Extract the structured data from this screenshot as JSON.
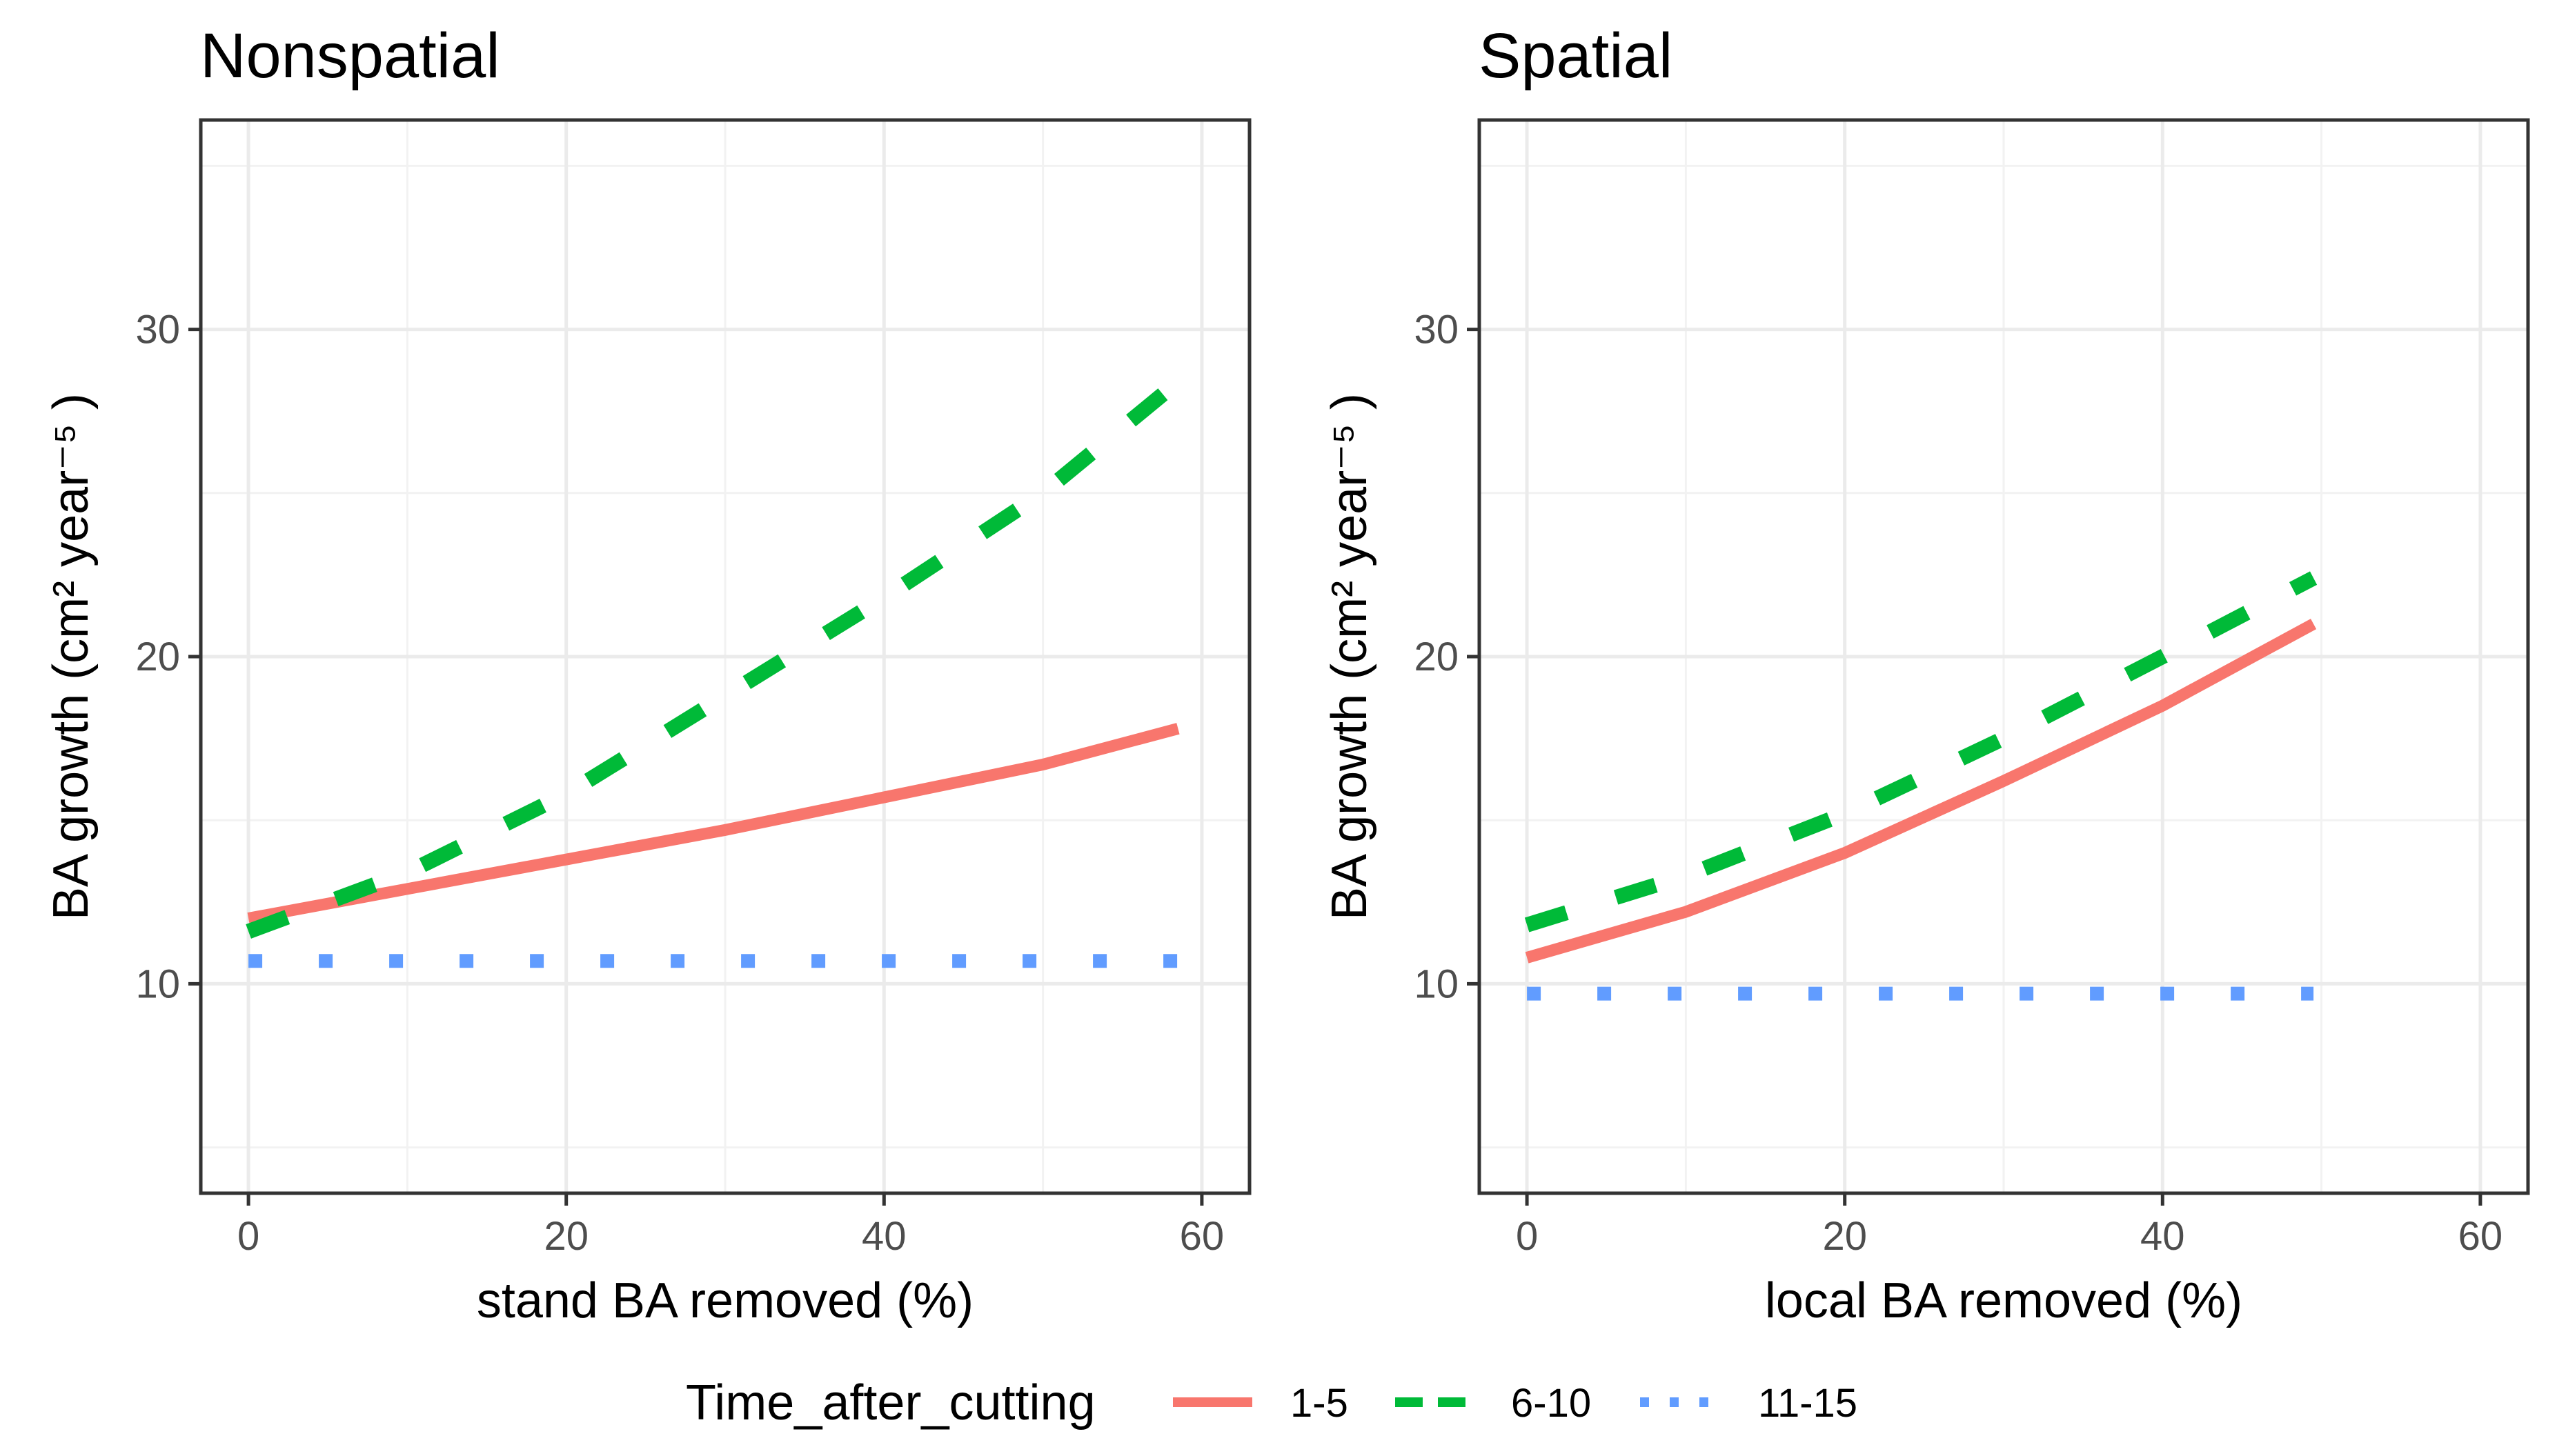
{
  "chart_data": [
    {
      "type": "line",
      "title": "Nonspatial",
      "xlabel": "stand BA removed (%)",
      "ylabel": "BA growth (cm² year⁻⁵ )",
      "xlim": [
        -3,
        63
      ],
      "ylim": [
        3.6,
        36.4
      ],
      "xticks": [
        0,
        20,
        40,
        60
      ],
      "yticks": [
        10,
        20,
        30
      ],
      "grid": true,
      "series": [
        {
          "name": "1-5",
          "color": "#F8766D",
          "dash": "solid",
          "x": [
            0,
            10,
            20,
            30,
            40,
            50,
            58.5
          ],
          "y": [
            12.0,
            12.9,
            13.8,
            14.7,
            15.7,
            16.7,
            17.8
          ]
        },
        {
          "name": "6-10",
          "color": "#00BA38",
          "dash": "dashed",
          "x": [
            0,
            10,
            20,
            30,
            40,
            50,
            58.5
          ],
          "y": [
            11.6,
            13.4,
            15.8,
            18.8,
            21.8,
            25.0,
            28.4
          ]
        },
        {
          "name": "11-15",
          "color": "#619CFF",
          "dash": "dotted",
          "x": [
            0,
            58.5
          ],
          "y": [
            10.7,
            10.7
          ]
        }
      ]
    },
    {
      "type": "line",
      "title": "Spatial",
      "xlabel": "local BA removed (%)",
      "ylabel": "BA growth (cm² year⁻⁵ )",
      "xlim": [
        -3,
        63
      ],
      "ylim": [
        3.6,
        36.4
      ],
      "xticks": [
        0,
        20,
        40,
        60
      ],
      "yticks": [
        10,
        20,
        30
      ],
      "grid": true,
      "series": [
        {
          "name": "1-5",
          "color": "#F8766D",
          "dash": "solid",
          "x": [
            0,
            10,
            20,
            30,
            40,
            49.5
          ],
          "y": [
            10.8,
            12.2,
            14.0,
            16.2,
            18.5,
            21.0
          ]
        },
        {
          "name": "6-10",
          "color": "#00BA38",
          "dash": "dashed",
          "x": [
            0,
            10,
            20,
            30,
            40,
            49.5
          ],
          "y": [
            11.8,
            13.3,
            15.2,
            17.5,
            20.0,
            22.4
          ]
        },
        {
          "name": "11-15",
          "color": "#619CFF",
          "dash": "dotted",
          "x": [
            0,
            49.5
          ],
          "y": [
            9.7,
            9.7
          ]
        }
      ]
    }
  ],
  "legend": {
    "title": "Time_after_cutting",
    "placement": "bottom",
    "entries": [
      {
        "label": "1-5",
        "color": "#F8766D",
        "dash": "solid"
      },
      {
        "label": "6-10",
        "color": "#00BA38",
        "dash": "dashed"
      },
      {
        "label": "11-15",
        "color": "#619CFF",
        "dash": "dotted"
      }
    ]
  }
}
